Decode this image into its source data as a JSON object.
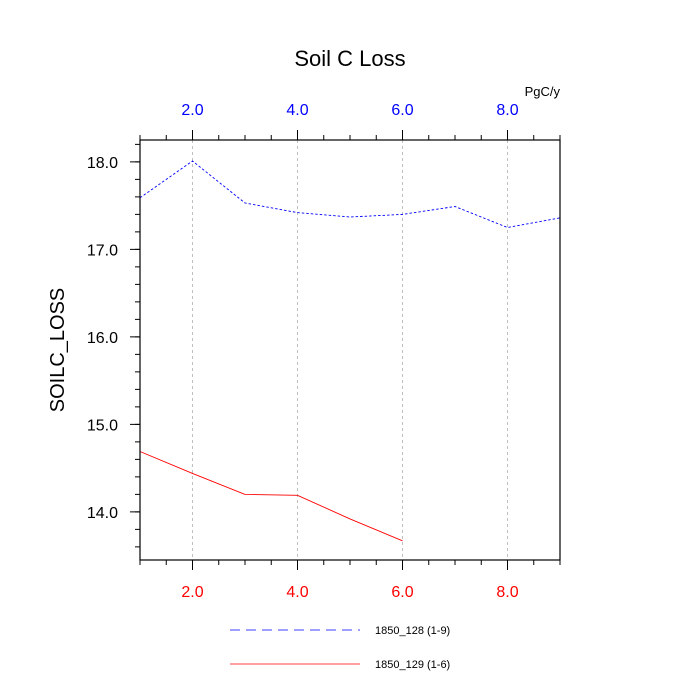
{
  "chart_data": {
    "type": "line",
    "title": "Soil C Loss",
    "ylabel": "SOILC_LOSS",
    "xlabel": "",
    "top_axis_unit": "PgC/y",
    "xlim": [
      1,
      9
    ],
    "ylim": [
      13.45,
      18.25
    ],
    "x_ticks": [
      2,
      4,
      6,
      8
    ],
    "x_tick_labels": [
      "2.0",
      "4.0",
      "6.0",
      "8.0"
    ],
    "y_ticks": [
      14,
      15,
      16,
      17,
      18
    ],
    "y_tick_labels": [
      "14.0",
      "15.0",
      "16.0",
      "17.0",
      "18.0"
    ],
    "grid": "vertical-dashed",
    "legend_position": "bottom",
    "series": [
      {
        "name": "1850_128 (1-9)",
        "color": "#0000ff",
        "dash": "dashed",
        "x": [
          1,
          2,
          3,
          4,
          5,
          6,
          7,
          8,
          9
        ],
        "y": [
          17.59,
          18.01,
          17.53,
          17.42,
          17.37,
          17.4,
          17.49,
          17.25,
          17.36
        ]
      },
      {
        "name": "1850_129 (1-6)",
        "color": "#ff0000",
        "dash": "solid",
        "x": [
          1,
          2,
          3,
          4,
          5,
          6
        ],
        "y": [
          14.69,
          14.44,
          14.2,
          14.19,
          13.92,
          13.67
        ]
      }
    ],
    "axis_colors": {
      "bottom": "#ff0000",
      "top": "#0000ff",
      "left": "#000000"
    }
  }
}
